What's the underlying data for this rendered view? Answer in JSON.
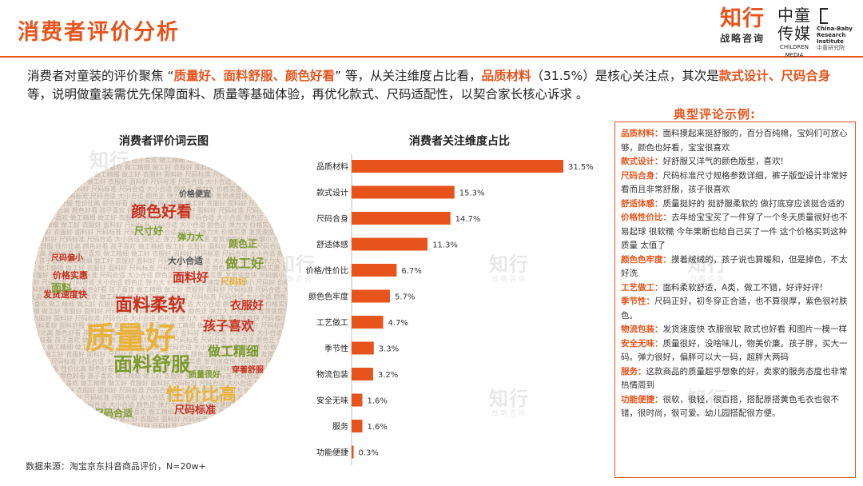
{
  "header": {
    "title": "消费者评价分析",
    "logo_zhixing": "知行",
    "logo_zhixing_sub": "战略咨询",
    "logo_zhongtong": "中童",
    "logo_chuanmei": "传媒",
    "logo_zhongtong_sub": "CHILDREN MEDIA",
    "logo_cbri_line1": "China-Baby",
    "logo_cbri_line2": "Research",
    "logo_cbri_line3": "Institute",
    "logo_cbri_cn": "中童研究院"
  },
  "intro": {
    "p1": "消费者对童装的评价聚焦 “",
    "h1": "质量好、面料舒服、颜色好看",
    "p2": "” 等，从关注维度占比看，",
    "h2": "品质材料",
    "p3": "（31.5%）是核心关注点，其次是",
    "h3": "款式设计、尺码合身",
    "p4": "等，说明做童装需优先保障面料、质量等基础体验，再优化款式、尺码适配性，以契合家长核心诉求 。"
  },
  "wordcloud": {
    "title": "消费者评价词云图",
    "words": [
      {
        "text": "质量好",
        "color": "#e8b23a"
      },
      {
        "text": "面料柔软",
        "color": "#c8301e"
      },
      {
        "text": "面料舒服",
        "color": "#7a9a2e"
      },
      {
        "text": "性价比高",
        "color": "#e8b23a"
      },
      {
        "text": "颜色好看",
        "color": "#c8301e"
      },
      {
        "text": "孩子喜欢",
        "color": "#c8301e"
      },
      {
        "text": "做工精细",
        "color": "#7a9a2e"
      },
      {
        "text": "做工好",
        "color": "#7a9a2e"
      },
      {
        "text": "衣服好",
        "color": "#c8301e"
      },
      {
        "text": "面料好",
        "color": "#c8301e"
      },
      {
        "text": "尺码标准",
        "color": "#c8301e"
      },
      {
        "text": "尺码合适",
        "color": "#7a9a2e"
      },
      {
        "text": "大小合适",
        "color": "#555555"
      },
      {
        "text": "颜色正",
        "color": "#7a9a2e"
      },
      {
        "text": "弹力大",
        "color": "#7a9a2e"
      },
      {
        "text": "价格实惠",
        "color": "#c8301e"
      },
      {
        "text": "发货速度快",
        "color": "#c8301e"
      },
      {
        "text": "尺码偏小",
        "color": "#c8301e"
      },
      {
        "text": "尺码好",
        "color": "#e8b23a"
      },
      {
        "text": "价格便宜",
        "color": "#555555"
      },
      {
        "text": "尺寸好",
        "color": "#7a9a2e"
      },
      {
        "text": "面料",
        "color": "#7a9a2e"
      },
      {
        "text": "穿着舒服",
        "color": "#c8301e"
      },
      {
        "text": "质量很好",
        "color": "#7a9a2e"
      }
    ]
  },
  "chart_data": {
    "type": "bar",
    "orientation": "horizontal",
    "title": "消费者关注维度占比",
    "categories": [
      "品质材料",
      "款式设计",
      "尺码合身",
      "舒适体感",
      "价格/性价比",
      "颜色色牢度",
      "工艺做工",
      "季节性",
      "物流包装",
      "安全无味",
      "服务",
      "功能便捷"
    ],
    "values": [
      31.5,
      15.3,
      14.7,
      11.3,
      6.7,
      5.7,
      4.7,
      3.3,
      3.2,
      1.6,
      1.6,
      0.3
    ],
    "value_labels": [
      "31.5%",
      "15.3%",
      "14.7%",
      "11.3%",
      "6.7%",
      "5.7%",
      "4.7%",
      "3.3%",
      "3.2%",
      "1.6%",
      "1.6%",
      "0.3%"
    ],
    "unit": "%",
    "xlim": [
      0,
      31.5
    ],
    "bar_color": "#e8531c",
    "grid": false
  },
  "reviews": {
    "title": "典型评论示例:",
    "items": [
      {
        "label": "品质材料：",
        "text": "面料摸起来挺舒服的，百分百纯棉，宝妈们可放心够，颜色也好看，宝宝很喜欢"
      },
      {
        "label": "款式设计：",
        "text": "好舒服又洋气的颜色版型，喜欢!"
      },
      {
        "label": "尺码合身：",
        "text": "尺码标准尺寸规格参数详细，裤子版型设计非常好看而且非常舒服，孩子很喜欢"
      },
      {
        "label": "舒适体感：",
        "text": "质量挺好的 挺舒服柔软的 做打底穿应该挺合适的"
      },
      {
        "label": "价格性价比：",
        "text": "去年给宝宝买了一件穿了一个冬天质量很好也不易起球 很软糯 今年果断也给自己买了一件 这个价格买到这种质量 太值了"
      },
      {
        "label": "颜色色牢度：",
        "text": "摸着绒绒的，孩子说也算暖和，但是掉色，不太好洗"
      },
      {
        "label": "工艺做工：",
        "text": "面料柔软舒适，A类，做工不错，好评好评!"
      },
      {
        "label": "季节性：",
        "text": "尺码正好，初冬穿正合适，也不算很厚，紫色很衬肤色。"
      },
      {
        "label": "物流包装：",
        "text": "发货速度快 衣服很软  款式也好看  和图片一模一样"
      },
      {
        "label": "安全无味：",
        "text": "质量很好，没啥味儿，物美价廉。孩子胖，买大一码。弹力很好，偏胖可以大一码，超胖大两码"
      },
      {
        "label": "服务：",
        "text": "这款商品的质量超乎想象的好，卖家的服务态度也非常热情周到"
      },
      {
        "label": "功能便捷：",
        "text": "很软，很轻，很百搭，搭配原搭黄色毛衣也很不错，很时尚，很可爱。幼儿园搭配很方便。"
      }
    ]
  },
  "footer": {
    "source": "数据来源：淘宝京东抖音商品评价，N=20w+"
  },
  "watermark": {
    "line1": "知行",
    "line2": "战略咨询"
  },
  "colors": {
    "accent": "#e8531c",
    "text": "#222222"
  }
}
